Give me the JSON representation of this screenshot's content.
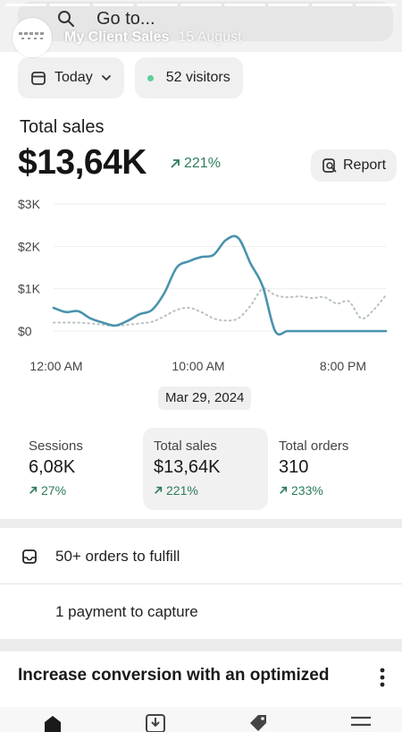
{
  "story": {
    "username": "My Client Sales",
    "time": "15 August",
    "progress_segments": 9
  },
  "search": {
    "placeholder": "Go to..."
  },
  "filters": {
    "date": "Today",
    "visitors": "52 visitors",
    "visitor_dot_color": "#5ccf9b"
  },
  "summary": {
    "label": "Total sales",
    "value": "$13,64K",
    "change": "221%",
    "report_label": "Report"
  },
  "chart_data": {
    "type": "line",
    "x_tick_labels": [
      "12:00 AM",
      "10:00 AM",
      "8:00 PM"
    ],
    "y_tick_labels": [
      "$3K",
      "$2K",
      "$1K",
      "$0"
    ],
    "ylim": [
      0,
      3000
    ],
    "grid": true,
    "series": [
      {
        "style": "solid",
        "color": "#4a93ad",
        "values": [
          550,
          450,
          470,
          300,
          200,
          130,
          240,
          400,
          500,
          900,
          1500,
          1650,
          1750,
          1800,
          2150,
          2200,
          1600,
          1050,
          0,
          0,
          0,
          0,
          0,
          0,
          0,
          0,
          0,
          0
        ]
      },
      {
        "style": "dotted",
        "color": "#b8c0c4",
        "values": [
          200,
          200,
          200,
          180,
          150,
          120,
          150,
          180,
          220,
          350,
          500,
          550,
          450,
          300,
          250,
          300,
          600,
          1000,
          850,
          800,
          820,
          780,
          800,
          650,
          700,
          300,
          500,
          850
        ]
      }
    ]
  },
  "chart_date": "Mar 29, 2024",
  "metrics": [
    {
      "label": "Sessions",
      "value": "6,08K",
      "change": "27%"
    },
    {
      "label": "Total sales",
      "value": "$13,64K",
      "change": "221%"
    },
    {
      "label": "Total orders",
      "value": "310",
      "change": "233%"
    }
  ],
  "tasks": {
    "fulfill": "50+ orders to fulfill",
    "capture": "1 payment to capture"
  },
  "promo": {
    "title": "Increase conversion with an optimized"
  },
  "colors": {
    "positive": "#2d7d5a",
    "line": "#4a93ad"
  }
}
